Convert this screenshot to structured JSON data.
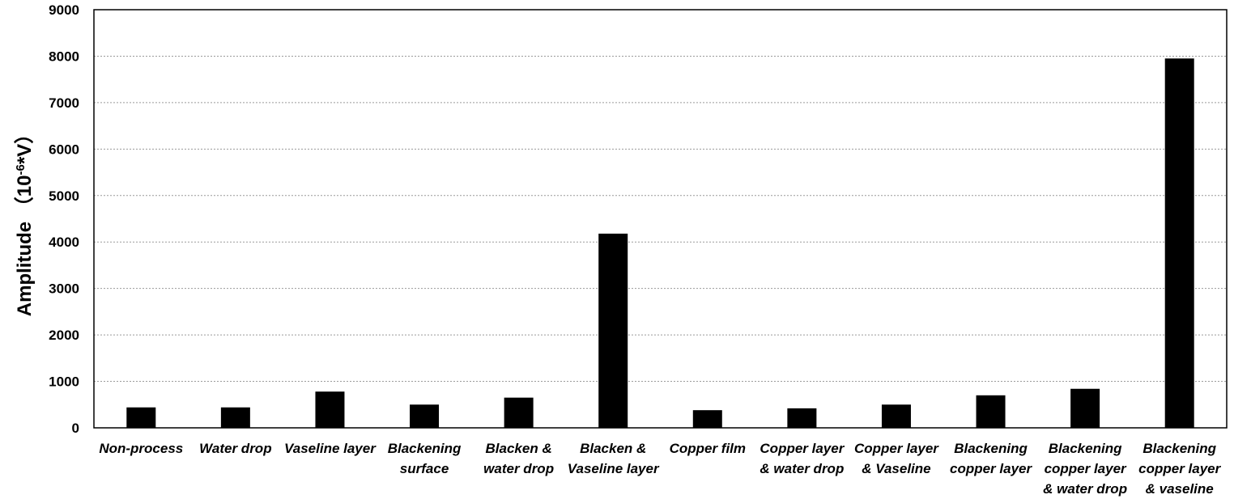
{
  "chart_data": {
    "type": "bar",
    "title": "",
    "xlabel": "",
    "ylabel": "Amplitude （10-6*V）",
    "ylabel_parts": {
      "prefix": "Amplitude （10",
      "sup": "-6",
      "suffix": "*V）"
    },
    "ylim": [
      0,
      9000
    ],
    "yticks": [
      0,
      1000,
      2000,
      3000,
      4000,
      5000,
      6000,
      7000,
      8000,
      9000
    ],
    "grid": "horizontal dotted",
    "legend": "none",
    "bar_color": "#000000",
    "categories": [
      "Non-process",
      "Water drop",
      "Vaseline layer",
      "Blackening surface",
      "Blacken & water drop",
      "Blacken & Vaseline layer",
      "Copper film",
      "Copper layer & water drop",
      "Copper layer & Vaseline",
      "Blackening copper layer",
      "Blackening copper layer & water drop",
      "Blackening copper layer & vaseline"
    ],
    "category_lines": [
      [
        "Non-process"
      ],
      [
        "Water drop"
      ],
      [
        "Vaseline layer"
      ],
      [
        "Blackening",
        "surface"
      ],
      [
        "Blacken &",
        "water drop"
      ],
      [
        "Blacken &",
        "Vaseline layer"
      ],
      [
        "Copper film"
      ],
      [
        "Copper layer",
        "& water drop"
      ],
      [
        "Copper layer",
        "& Vaseline"
      ],
      [
        "Blackening",
        "copper layer"
      ],
      [
        "Blackening",
        "copper layer",
        "& water drop"
      ],
      [
        "Blackening",
        "copper layer",
        "& vaseline"
      ]
    ],
    "values": [
      440,
      440,
      780,
      500,
      650,
      4180,
      380,
      420,
      500,
      700,
      840,
      7950
    ]
  }
}
